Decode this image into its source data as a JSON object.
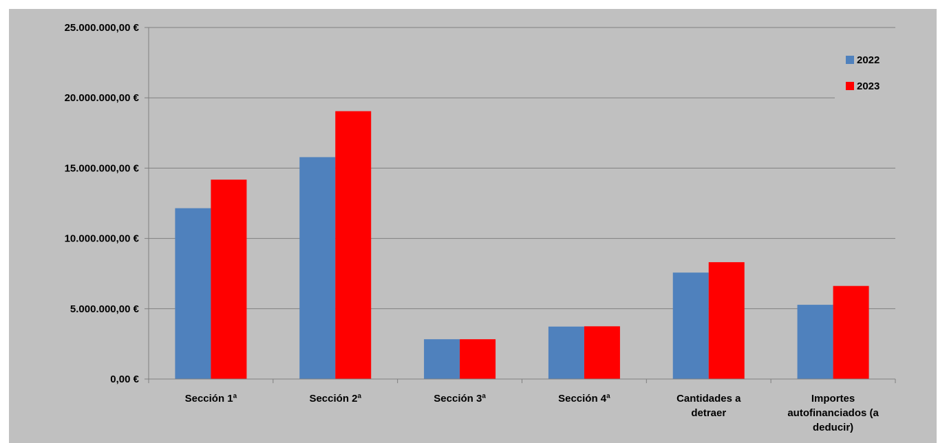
{
  "chart_data": {
    "type": "bar",
    "categories": [
      [
        "Sección 1ª"
      ],
      [
        "Sección 2ª"
      ],
      [
        "Sección 3ª"
      ],
      [
        "Sección 4ª"
      ],
      [
        "Cantidades a",
        "detraer"
      ],
      [
        "Importes",
        "autofinanciados (a",
        "deducir)"
      ]
    ],
    "series": [
      {
        "name": "2022",
        "color": "#4f81bd",
        "values": [
          12150000,
          15780000,
          2830000,
          3730000,
          7570000,
          5280000
        ]
      },
      {
        "name": "2023",
        "color": "#ff0000",
        "values": [
          14180000,
          19050000,
          2830000,
          3750000,
          8310000,
          6620000
        ]
      }
    ],
    "ylim": [
      0,
      25000000
    ],
    "yticks": [
      0,
      5000000,
      10000000,
      15000000,
      20000000,
      25000000
    ],
    "ytick_labels": [
      "0,00 €",
      "5.000.000,00 €",
      "10.000.000,00 €",
      "15.000.000,00 €",
      "20.000.000,00 €",
      "25.000.000,00 €"
    ],
    "grid": true,
    "legend_position": "top-right",
    "title": "",
    "xlabel": "",
    "ylabel": ""
  }
}
